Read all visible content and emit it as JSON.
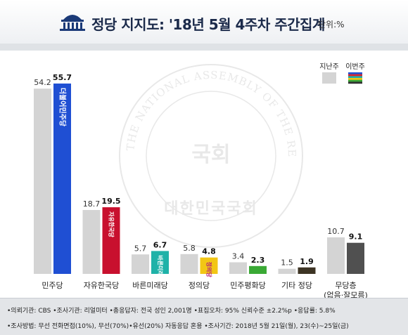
{
  "header": {
    "title": "정당 지지도: '18년 5월 4주차 주간집계",
    "unit": "단위:%"
  },
  "legend": {
    "last_week": "지난주",
    "this_week": "이번주",
    "this_week_colors": [
      "#1f4fd3",
      "#d9232e",
      "#1fb2a8",
      "#f2c615",
      "#3aa935",
      "#333333"
    ]
  },
  "watermark": {
    "ring_text": "THE NATIONAL ASSEMBLY OF THE REPUBLIC OF KOREA",
    "center_text": "국회",
    "bottom_text": "대한민국국회"
  },
  "chart_data": {
    "type": "bar",
    "categories": [
      "민주당",
      "자유한국당",
      "바른미래당",
      "정의당",
      "민주평화당",
      "기타 정당",
      "무당층"
    ],
    "category_notes": [
      "",
      "",
      "",
      "",
      "",
      "",
      "(없음·잘모름)"
    ],
    "series": [
      {
        "name": "지난주",
        "values": [
          54.2,
          18.7,
          5.7,
          5.8,
          3.4,
          1.5,
          10.7
        ],
        "color": "#d4d4d4"
      },
      {
        "name": "이번주",
        "values": [
          55.7,
          19.5,
          6.7,
          4.8,
          2.3,
          1.9,
          9.1
        ],
        "colors": [
          "#1f4fd3",
          "#c8102e",
          "#1fb2a8",
          "#f2c615",
          "#3aa935",
          "#3d3424",
          "#505050"
        ]
      }
    ],
    "bar_labels": [
      "더불어민주당",
      "자유한국당",
      "바른미래당",
      "정의당",
      "",
      "",
      ""
    ],
    "ylim": [
      0,
      60
    ],
    "grid": false,
    "legend_position": "top-right"
  },
  "footer": {
    "line1": "•의뢰기관: CBS  •조사기관: 리얼미터  •총응답자: 전국 성인 2,001명  •표집오차: 95% 신뢰수준 ±2.2%p  •응답률: 5.8%",
    "line2": "•조사방법: 무선 전화면접(10%), 무선(70%)•유선(20%) 자동응답 혼용  •조사기간: 2018년 5월 21일(월), 23(수)~25일(금)"
  }
}
